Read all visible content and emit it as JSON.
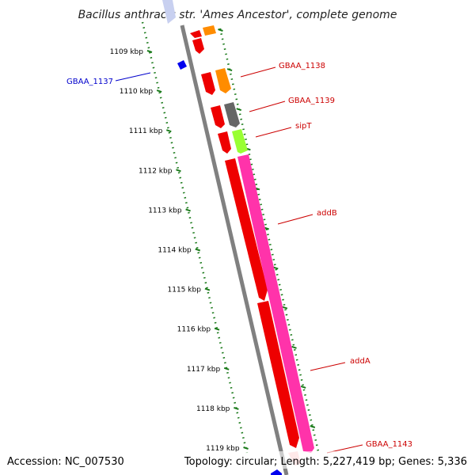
{
  "title": "Bacillus anthracis str. 'Ames Ancestor', complete genome",
  "footer": {
    "accession": "Accession: NC_007530",
    "summary": "Topology: circular; Length: 5,227,419 bp; Genes: 5,336"
  },
  "colors": {
    "backbone": "#808080",
    "ticks": "#1a7a1a",
    "label_red": "#cc0000",
    "label_blue": "#0000cc",
    "gene_red": "#ee0000",
    "gene_orange": "#ff8c00",
    "gene_gray": "#666666",
    "gene_lime": "#99ff33",
    "gene_pink": "#ff33aa",
    "gene_blue": "#0000ee"
  },
  "ticks": [
    {
      "label": "1109 kbp"
    },
    {
      "label": "1110 kbp"
    },
    {
      "label": "1111 kbp"
    },
    {
      "label": "1112 kbp"
    },
    {
      "label": "1113 kbp"
    },
    {
      "label": "1114 kbp"
    },
    {
      "label": "1115 kbp"
    },
    {
      "label": "1116 kbp"
    },
    {
      "label": "1117 kbp"
    },
    {
      "label": "1118 kbp"
    },
    {
      "label": "1119 kbp"
    }
  ],
  "gene_labels": [
    {
      "name": "GBAA_1137",
      "color": "label_blue"
    },
    {
      "name": "GBAA_1138",
      "color": "label_red"
    },
    {
      "name": "GBAA_1139",
      "color": "label_red"
    },
    {
      "name": "sipT",
      "color": "label_red"
    },
    {
      "name": "addB",
      "color": "label_red"
    },
    {
      "name": "addA",
      "color": "label_red"
    },
    {
      "name": "GBAA_1143",
      "color": "label_red"
    }
  ]
}
